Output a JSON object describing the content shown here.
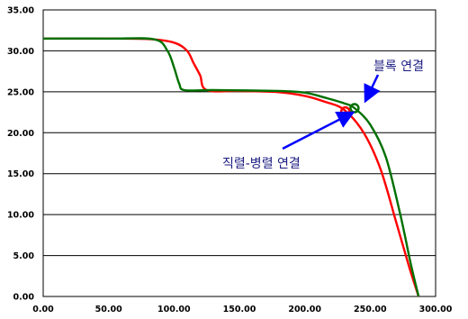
{
  "chart_data": {
    "type": "line",
    "title": "",
    "xlabel": "",
    "ylabel": "",
    "xlim": [
      0,
      300
    ],
    "ylim": [
      0,
      35
    ],
    "xticks": [
      "0.00",
      "50.00",
      "100.00",
      "150.00",
      "200.00",
      "250.00",
      "300.00"
    ],
    "yticks": [
      "0.00",
      "5.00",
      "10.00",
      "15.00",
      "20.00",
      "25.00",
      "30.00",
      "35.00"
    ],
    "grid": "horizontal",
    "series": [
      {
        "color": "#ff0000",
        "x": [
          0,
          40,
          80,
          100,
          110,
          115,
          120,
          125,
          150,
          180,
          200,
          215,
          230,
          245,
          258,
          270,
          280,
          287
        ],
        "y": [
          31.5,
          31.5,
          31.45,
          31.0,
          30.0,
          28.5,
          27.0,
          25.2,
          25.1,
          24.95,
          24.5,
          23.8,
          22.8,
          20.0,
          15.5,
          9.0,
          3.5,
          0
        ]
      },
      {
        "color": "#007000",
        "x": [
          0,
          50,
          85,
          95,
          100,
          104,
          108,
          130,
          180,
          200,
          215,
          230,
          238,
          250,
          262,
          273,
          281,
          287
        ],
        "y": [
          31.5,
          31.5,
          31.4,
          30.0,
          28.0,
          26.0,
          25.2,
          25.2,
          25.1,
          24.9,
          24.3,
          23.6,
          23.0,
          21.0,
          17.0,
          10.0,
          4.0,
          0
        ]
      }
    ],
    "markers": [
      {
        "x": 238,
        "y": 23.0,
        "color": "#007000"
      },
      {
        "x": 231,
        "y": 22.6,
        "color": "#ff0000"
      }
    ],
    "annotations": [
      {
        "text": "블록 연결"
      },
      {
        "text": "직렬-병렬 연결"
      }
    ]
  }
}
